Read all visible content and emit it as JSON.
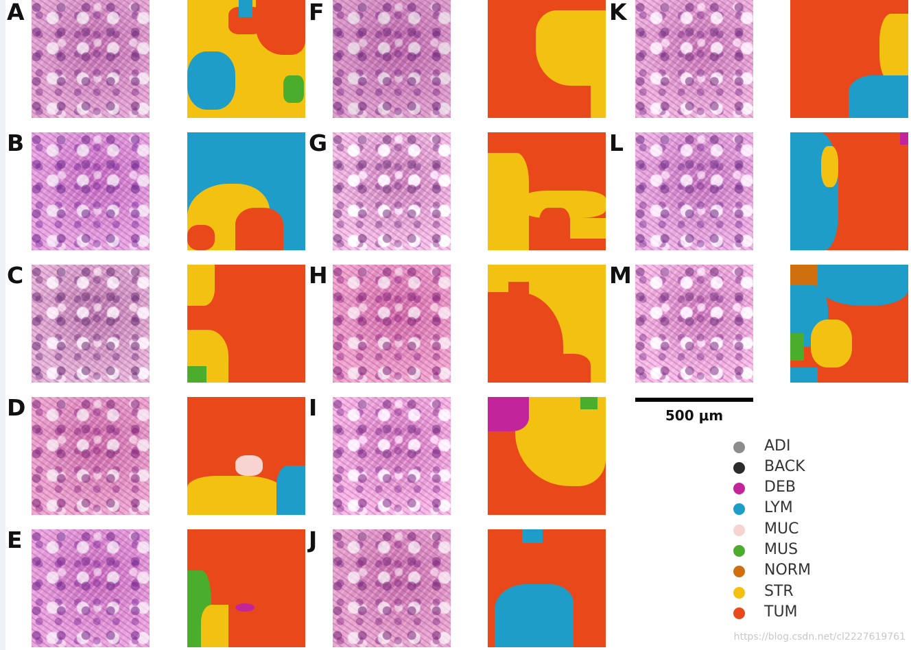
{
  "panels": [
    "A",
    "B",
    "C",
    "D",
    "E",
    "F",
    "G",
    "H",
    "I",
    "J",
    "K",
    "L",
    "M"
  ],
  "scale_bar": {
    "label": "500 μm"
  },
  "legend": [
    {
      "label": "ADI",
      "color": "#8c8c8c"
    },
    {
      "label": "BACK",
      "color": "#2b2b2b"
    },
    {
      "label": "DEB",
      "color": "#c2259a"
    },
    {
      "label": "LYM",
      "color": "#1f9dc9"
    },
    {
      "label": "MUC",
      "color": "#f7d4cf"
    },
    {
      "label": "MUS",
      "color": "#4aad2b"
    },
    {
      "label": "NORM",
      "color": "#cf6f0e"
    },
    {
      "label": "STR",
      "color": "#f3c112"
    },
    {
      "label": "TUM",
      "color": "#e8481a"
    }
  ],
  "watermark": "https://blog.csdn.net/cl2227619761"
}
